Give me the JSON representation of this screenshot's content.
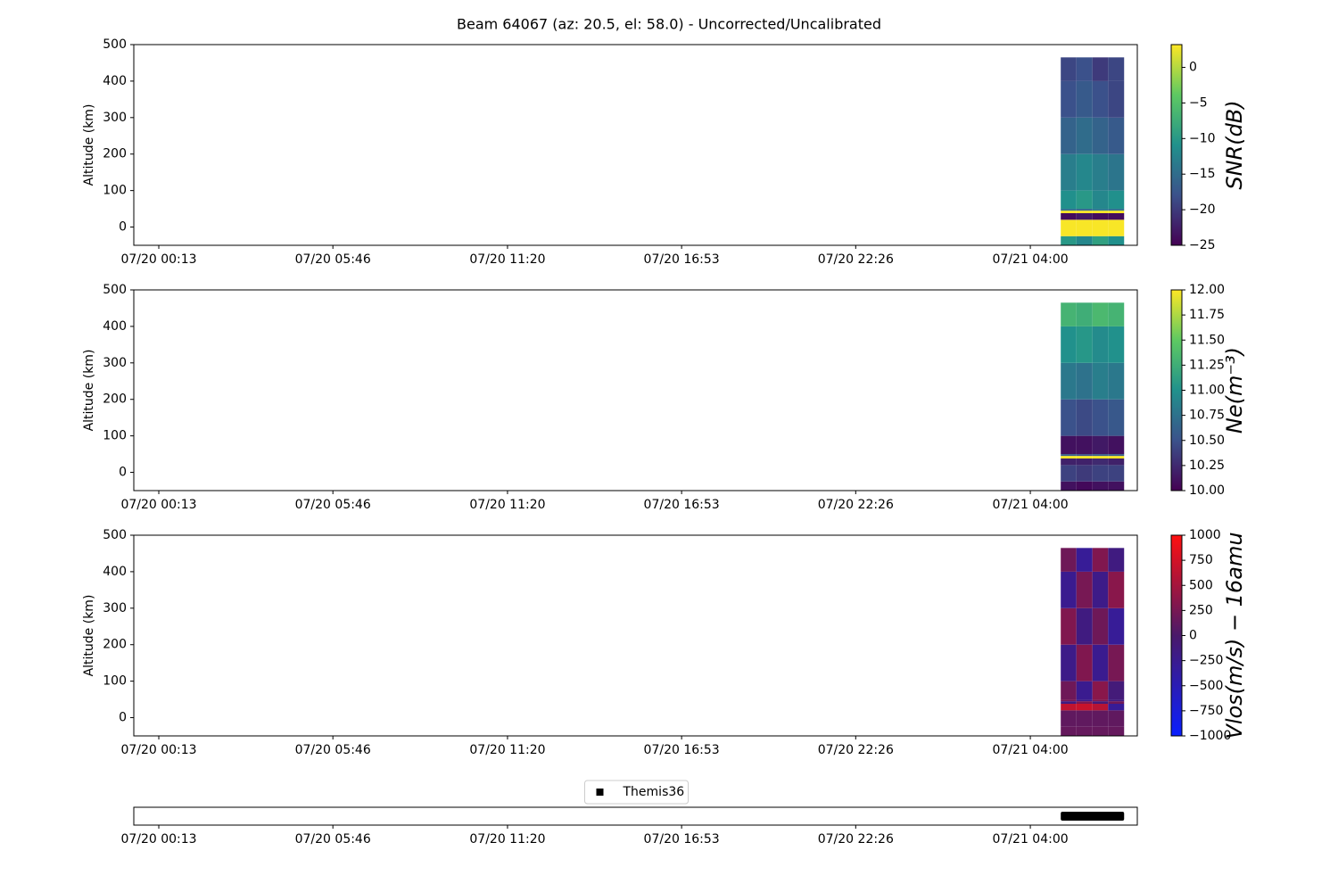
{
  "title": "Beam 64067 (az: 20.5, el: 58.0) - Uncorrected/Uncalibrated",
  "chart_data": [
    {
      "type": "heatmap",
      "ylabel": "Altitude (km)",
      "xlim": [
        -0.58,
        31.41
      ],
      "xticks": [
        {
          "value": 0.2167,
          "label": "07/20 00:13"
        },
        {
          "value": 5.7667,
          "label": "07/20 05:46"
        },
        {
          "value": 11.3333,
          "label": "07/20 11:20"
        },
        {
          "value": 16.8833,
          "label": "07/20 16:53"
        },
        {
          "value": 22.4333,
          "label": "07/20 22:26"
        },
        {
          "value": 28.0,
          "label": "07/21 04:00"
        }
      ],
      "ylim": [
        -50,
        500
      ],
      "yticks": [
        0,
        100,
        200,
        300,
        400,
        500
      ],
      "x_edges": [
        28.97,
        29.47,
        29.98,
        30.48,
        30.99
      ],
      "y_edges": [
        -50,
        -25,
        20,
        38,
        45,
        50,
        100,
        200,
        300,
        400,
        465
      ],
      "values": [
        [
          -10,
          -12,
          -9,
          -11
        ],
        [
          3,
          3,
          3,
          3
        ],
        [
          -24,
          -23,
          -24,
          -24
        ],
        [
          3,
          3,
          3,
          3
        ],
        [
          -15,
          -16,
          -14,
          -15
        ],
        [
          -11,
          -10,
          -12,
          -11
        ],
        [
          -13,
          -12,
          -13,
          -14
        ],
        [
          -16,
          -15,
          -16,
          -17
        ],
        [
          -18,
          -17,
          -18,
          -19
        ],
        [
          -19,
          -18,
          -20,
          -19
        ]
      ],
      "colorbar": {
        "label": "SNR(dB)",
        "clim": [
          -25,
          3.2
        ],
        "ticks": [
          {
            "value": -25,
            "label": "−25"
          },
          {
            "value": -20,
            "label": "−20"
          },
          {
            "value": -15,
            "label": "−15"
          },
          {
            "value": -10,
            "label": "−10"
          },
          {
            "value": -5,
            "label": "−5"
          },
          0
        ],
        "colors": [
          "#440154",
          "#3b528b",
          "#21918c",
          "#5ec962",
          "#fde725"
        ]
      }
    },
    {
      "type": "heatmap",
      "ylabel": "Altitude (km)",
      "xlim": [
        -0.58,
        31.41
      ],
      "xticks": [
        {
          "value": 0.2167,
          "label": "07/20 00:13"
        },
        {
          "value": 5.7667,
          "label": "07/20 05:46"
        },
        {
          "value": 11.3333,
          "label": "07/20 11:20"
        },
        {
          "value": 16.8833,
          "label": "07/20 16:53"
        },
        {
          "value": 22.4333,
          "label": "07/20 22:26"
        },
        {
          "value": 28.0,
          "label": "07/21 04:00"
        }
      ],
      "ylim": [
        -50,
        500
      ],
      "yticks": [
        0,
        100,
        200,
        300,
        400,
        500
      ],
      "x_edges": [
        28.97,
        29.47,
        29.98,
        30.48,
        30.99
      ],
      "y_edges": [
        -50,
        -25,
        20,
        38,
        45,
        50,
        100,
        200,
        300,
        400,
        465
      ],
      "values": [
        [
          10.1,
          10.05,
          10.1,
          10.1
        ],
        [
          10.4,
          10.35,
          10.4,
          10.4
        ],
        [
          10.2,
          10.2,
          10.25,
          10.2
        ],
        [
          12,
          12,
          12,
          12
        ],
        [
          10.6,
          10.5,
          10.6,
          10.6
        ],
        [
          10.1,
          10.1,
          10.15,
          10.1
        ],
        [
          10.5,
          10.45,
          10.5,
          10.55
        ],
        [
          10.8,
          10.75,
          10.85,
          10.8
        ],
        [
          11,
          11.05,
          10.95,
          11
        ],
        [
          11.3,
          11.25,
          11.35,
          11.3
        ]
      ],
      "colorbar": {
        "label": "Ne(m⁻³)",
        "clim": [
          10,
          12
        ],
        "ticks": [
          {
            "value": 10,
            "label": "10.00"
          },
          {
            "value": 10.25,
            "label": "10.25"
          },
          {
            "value": 10.5,
            "label": "10.50"
          },
          {
            "value": 10.75,
            "label": "10.75"
          },
          {
            "value": 11,
            "label": "11.00"
          },
          {
            "value": 11.25,
            "label": "11.25"
          },
          {
            "value": 11.5,
            "label": "11.50"
          },
          {
            "value": 11.75,
            "label": "11.75"
          },
          {
            "value": 12,
            "label": "12.00"
          }
        ],
        "colors": [
          "#440154",
          "#3b528b",
          "#21918c",
          "#5ec962",
          "#fde725"
        ]
      }
    },
    {
      "type": "heatmap",
      "ylabel": "Altitude (km)",
      "xlim": [
        -0.58,
        31.41
      ],
      "xticks": [
        {
          "value": 0.2167,
          "label": "07/20 00:13"
        },
        {
          "value": 5.7667,
          "label": "07/20 05:46"
        },
        {
          "value": 11.3333,
          "label": "07/20 11:20"
        },
        {
          "value": 16.8833,
          "label": "07/20 16:53"
        },
        {
          "value": 22.4333,
          "label": "07/20 22:26"
        },
        {
          "value": 28.0,
          "label": "07/21 04:00"
        }
      ],
      "ylim": [
        -50,
        500
      ],
      "yticks": [
        0,
        100,
        200,
        300,
        400,
        500
      ],
      "x_edges": [
        28.97,
        29.47,
        29.98,
        30.48,
        30.99
      ],
      "y_edges": [
        -50,
        -25,
        20,
        38,
        45,
        50,
        100,
        200,
        300,
        400,
        465
      ],
      "values": [
        [
          150,
          150,
          150,
          150
        ],
        [
          120,
          120,
          120,
          120
        ],
        [
          650,
          700,
          600,
          -300
        ],
        [
          -150,
          300,
          -100,
          200
        ],
        [
          250,
          -200,
          300,
          -150
        ],
        [
          200,
          -250,
          350,
          -100
        ],
        [
          -200,
          300,
          -250,
          250
        ],
        [
          300,
          -150,
          200,
          -300
        ],
        [
          -250,
          250,
          -200,
          350
        ],
        [
          200,
          -300,
          300,
          -150
        ]
      ],
      "colorbar": {
        "label": "Vlos(m/s) − 16amu",
        "clim": [
          -1000,
          1000
        ],
        "ticks": [
          {
            "value": -1000,
            "label": "−1000"
          },
          {
            "value": -750,
            "label": "−750"
          },
          {
            "value": -500,
            "label": "−500"
          },
          {
            "value": -250,
            "label": "−250"
          },
          0,
          250,
          500,
          750,
          1000
        ],
        "colors": [
          "#0a1fff",
          "#4a1a6a",
          "#ff1010"
        ]
      }
    },
    {
      "type": "timeline",
      "legend": "upper center",
      "xlim": [
        -0.58,
        31.41
      ],
      "xticks": [
        {
          "value": 0.2167,
          "label": "07/20 00:13"
        },
        {
          "value": 5.7667,
          "label": "07/20 05:46"
        },
        {
          "value": 11.3333,
          "label": "07/20 11:20"
        },
        {
          "value": 16.8833,
          "label": "07/20 16:53"
        },
        {
          "value": 22.4333,
          "label": "07/20 22:26"
        },
        {
          "value": 28.0,
          "label": "07/21 04:00"
        }
      ],
      "series": [
        {
          "name": "Themis36",
          "color": "#000000",
          "start": 28.97,
          "end": 30.99
        }
      ]
    }
  ]
}
